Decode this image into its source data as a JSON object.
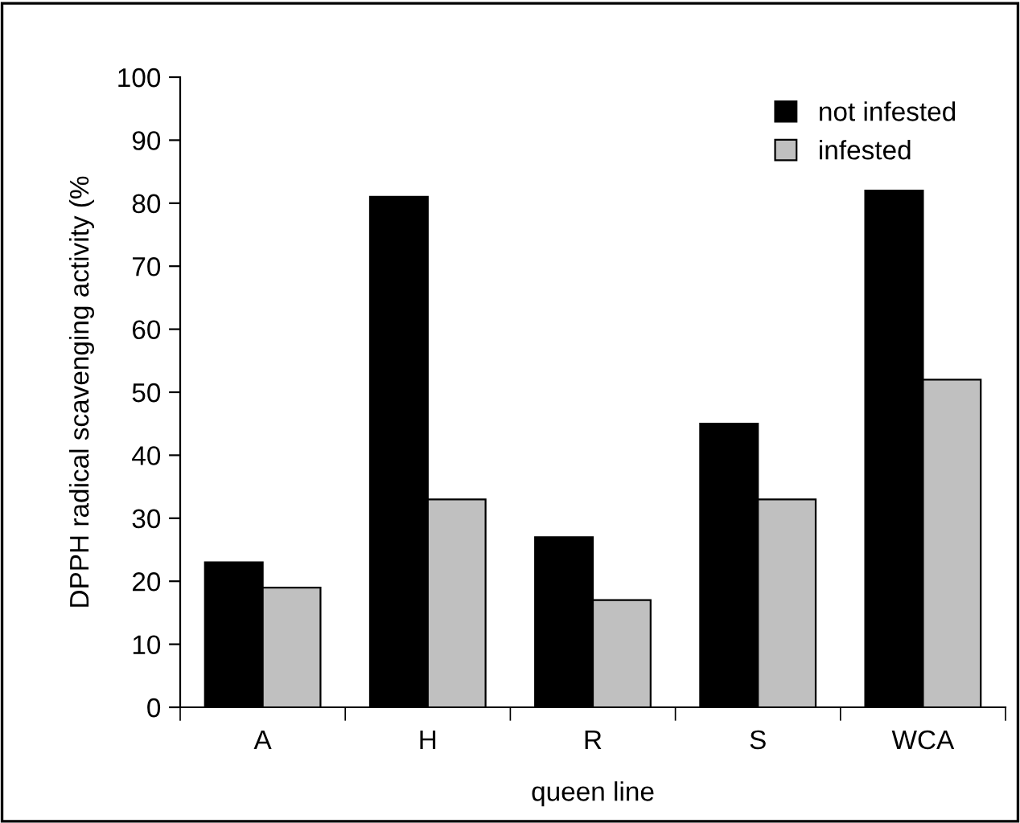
{
  "chart_data": {
    "type": "bar",
    "xlabel": "queen line",
    "ylabel": "DPPH radical scavenging activity (%",
    "categories": [
      "A",
      "H",
      "R",
      "S",
      "WCA"
    ],
    "series": [
      {
        "name": "not infested",
        "color": "#000000",
        "values": [
          23,
          81,
          27,
          45,
          82
        ]
      },
      {
        "name": "infested",
        "color": "#c0c0c0",
        "values": [
          19,
          33,
          17,
          33,
          52
        ]
      }
    ],
    "ylim": [
      0,
      100
    ],
    "yticks": [
      0,
      10,
      20,
      30,
      40,
      50,
      60,
      70,
      80,
      90,
      100
    ],
    "grid": false,
    "legend": "top right"
  }
}
